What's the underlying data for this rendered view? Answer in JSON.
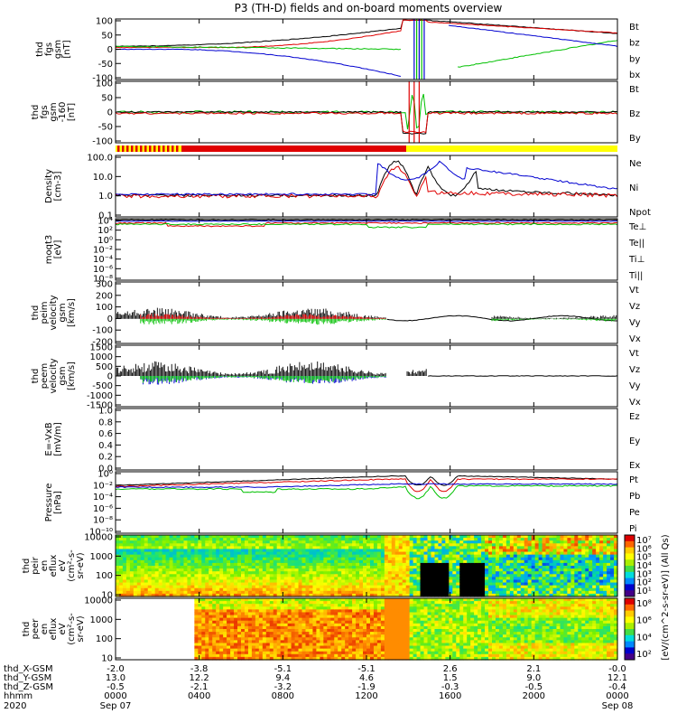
{
  "title": "P3 (TH-D) fields and on-board moments overview",
  "colors": {
    "black": "#000000",
    "red": "#e00000",
    "green": "#00c000",
    "blue": "#0000d0",
    "yellow": "#ffff00"
  },
  "chart_data": [
    {
      "type": "line",
      "ylabel": [
        "thd",
        "fgs",
        "gsm",
        "[nT]"
      ],
      "yticks": [
        "100",
        "50",
        "0",
        "-50",
        "-100"
      ],
      "ylim": [
        -100,
        100
      ],
      "legend": [
        {
          "name": "Bt",
          "color": "#000000"
        },
        {
          "name": "bz",
          "color": "#e00000"
        },
        {
          "name": "by",
          "color": "#00c000"
        },
        {
          "name": "bx",
          "color": "#0000d0"
        }
      ]
    },
    {
      "type": "line",
      "ylabel": [
        "thd",
        "fgs",
        "gsm",
        "-160",
        "[nT]"
      ],
      "yticks": [
        "100",
        "50",
        "0",
        "-50",
        "-100"
      ],
      "ylim": [
        -120,
        120
      ],
      "legend": [
        {
          "name": "Bt",
          "color": "#000000"
        },
        {
          "name": "Bz",
          "color": "#e00000"
        },
        {
          "name": "By",
          "color": "#00c000"
        }
      ]
    },
    {
      "type": "line",
      "ylabel": [
        "Density",
        "[cm-3]"
      ],
      "yticks": [
        "100.0",
        "10.0",
        "1.0",
        "0.1"
      ],
      "scale": "log",
      "legend": [
        {
          "name": "Ne",
          "color": "#e00000"
        },
        {
          "name": "Ni",
          "color": "#000000"
        },
        {
          "name": "Npot",
          "color": "#0000d0"
        }
      ]
    },
    {
      "type": "line",
      "ylabel": [
        "moqt3",
        "[eV]"
      ],
      "yticks": [
        "10⁴",
        "10²",
        "10⁰",
        "10⁻²",
        "10⁻⁴",
        "10⁻⁶",
        "10⁻⁸"
      ],
      "scale": "log",
      "legend": [
        {
          "name": "Te⊥",
          "color": "#e00000"
        },
        {
          "name": "Te||",
          "color": "#000000"
        },
        {
          "name": "Ti⊥",
          "color": "#00c000"
        },
        {
          "name": "Ti||",
          "color": "#00c000"
        }
      ]
    },
    {
      "type": "line",
      "ylabel": [
        "thd",
        "peim",
        "velocity",
        "gsm",
        "[km/s]"
      ],
      "yticks": [
        "300",
        "200",
        "100",
        "0",
        "-100",
        "-200"
      ],
      "ylim": [
        -200,
        300
      ],
      "legend": [
        {
          "name": "Vt",
          "color": "#000000"
        },
        {
          "name": "Vz",
          "color": "#e00000"
        },
        {
          "name": "Vy",
          "color": "#00c000"
        },
        {
          "name": "Vx",
          "color": "#0000d0"
        }
      ]
    },
    {
      "type": "line",
      "ylabel": [
        "thd",
        "peem",
        "velocity",
        "gsm",
        "[km/s]"
      ],
      "yticks": [
        "1500",
        "1000",
        "500",
        "0",
        "-500",
        "-1000",
        "-1500"
      ],
      "ylim": [
        -1500,
        1500
      ],
      "legend": [
        {
          "name": "Vt",
          "color": "#000000"
        },
        {
          "name": "Vz",
          "color": "#e00000"
        },
        {
          "name": "Vy",
          "color": "#00c000"
        },
        {
          "name": "Vx",
          "color": "#0000d0"
        }
      ]
    },
    {
      "type": "line",
      "ylabel": [
        "E=-VxB",
        "[mV/m]"
      ],
      "yticks": [
        "1.0",
        "0.8",
        "0.6",
        "0.4",
        "0.2",
        "0.0"
      ],
      "ylim": [
        0,
        1
      ],
      "legend": [
        {
          "name": "Ez",
          "color": "#e00000"
        },
        {
          "name": "Ey",
          "color": "#00c000"
        },
        {
          "name": "Ex",
          "color": "#0000d0"
        }
      ]
    },
    {
      "type": "line",
      "ylabel": [
        "Pressure",
        "[nPa]"
      ],
      "yticks": [
        "10⁰",
        "10⁻²",
        "10⁻⁴",
        "10⁻⁶",
        "10⁻⁸",
        "10⁻¹⁰"
      ],
      "scale": "log",
      "legend": [
        {
          "name": "Pt",
          "color": "#000000"
        },
        {
          "name": "Pb",
          "color": "#e00000"
        },
        {
          "name": "Pe",
          "color": "#00c000"
        },
        {
          "name": "Pi",
          "color": "#0000d0"
        }
      ]
    },
    {
      "type": "heatmap",
      "ylabel": [
        "thd",
        "peir",
        "en",
        "eflux",
        "eV",
        "(cm²-s-",
        "sr-eV)"
      ],
      "yticks": [
        "10000",
        "1000",
        "100",
        "10"
      ],
      "scale": "log",
      "colorbar_ticks": [
        "10⁷",
        "10⁶",
        "10⁵",
        "10⁴",
        "10³",
        "10²",
        "10¹"
      ]
    },
    {
      "type": "heatmap",
      "ylabel": [
        "thd",
        "peer",
        "en",
        "eflux",
        "eV",
        "(cm²-s-",
        "sr-eV)"
      ],
      "yticks": [
        "10000",
        "1000",
        "100",
        "10"
      ],
      "scale": "log",
      "colorbar_ticks": [
        "10⁸",
        "10⁶",
        "10⁴",
        "10²"
      ]
    }
  ],
  "colorbar_label": "[eV/(cm^2-s-sr-eV)] (All Qs)",
  "xaxis": {
    "row_labels": [
      "thd_X-GSM",
      "thd_Y-GSM",
      "thd_Z-GSM",
      "hhmm",
      "2020"
    ],
    "columns": [
      {
        "x": "-2.0",
        "y": "13.0",
        "z": "-0.5",
        "hhmm": "0000",
        "date": "Sep 07"
      },
      {
        "x": "-3.8",
        "y": "12.2",
        "z": "-2.1",
        "hhmm": "0400",
        "date": ""
      },
      {
        "x": "-5.1",
        "y": "9.4",
        "z": "-3.2",
        "hhmm": "0800",
        "date": ""
      },
      {
        "x": "-5.1",
        "y": "4.6",
        "z": "-1.9",
        "hhmm": "1200",
        "date": ""
      },
      {
        "x": "2.6",
        "y": "1.5",
        "z": "-0.3",
        "hhmm": "1600",
        "date": ""
      },
      {
        "x": "2.1",
        "y": "9.0",
        "z": "-0.5",
        "hhmm": "2000",
        "date": ""
      },
      {
        "x": "-0.0",
        "y": "12.1",
        "z": "-0.4",
        "hhmm": "0000",
        "date": "Sep 08"
      }
    ]
  }
}
